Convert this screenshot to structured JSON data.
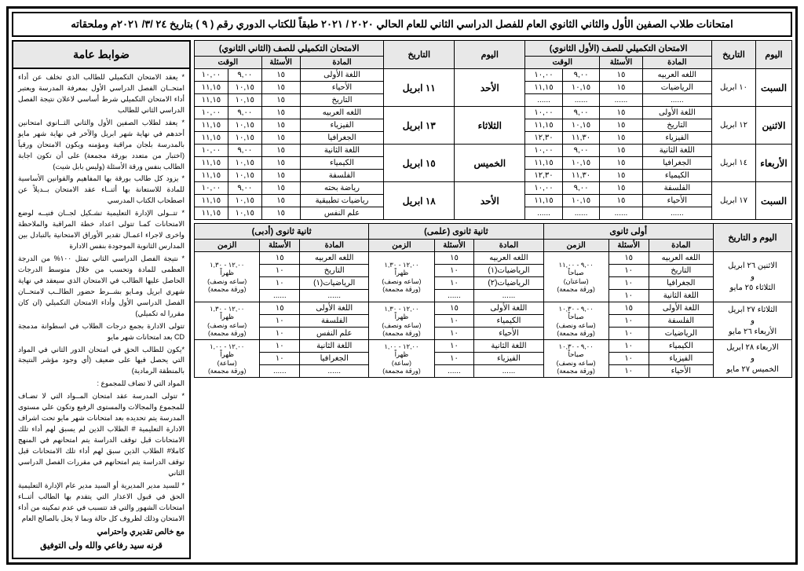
{
  "title": "امتحانات طلاب الصفين الأول والثاني الثانوي العام للفصل الدراسي الثاني للعام الحالي ٢٠٢٠ / ٢٠٢١ طبقاً للكتاب الدوري رقم ( ٩ ) بتاريخ ٢٤ /٣/ ٢٠٢١م وملحقاته",
  "rules_head": "ضوابط عامة",
  "rules": [
    "* يعقد الامتحان التكميلي للطالب الذي تخلف عن أداء امتحــان الفصل الدراسي الأول بمعرفة المدرسة ويعتبر أداء الامتحان التكميلي شرط أساسي لاعلان نتيجة الفصل الدراسي الثاني للطالب",
    "* يعقد لطلاب الصفين الأول والثاني الثــانوي امتحانين أحدهم في نهاية شهر ابريل والآخر في نهاية شهر مايو بالمدرسة بلجان مراقبة ومؤمنه ويكون الامتحان ورقياً (اختبار من متعدد بورقة مجمعة) على أن تكون اجابة الطالب بنفس ورقة الأسئلة (وليس بابل شيت)",
    "* يزود كل طالب بورقة بها المفاهيم والقوانين الأساسية للمادة للاستعانة بها أثنــاء عقد الامتحان بــديلاً عن اصطحاب الكتاب المدرسي",
    "* تتــولى الإدارة التعليمية تشـكيل لجــان فنيــه لوضع الامتحانات كمـا تتولى اعداد خطة المراقبة والملاحظة واخرى لاجراء اعمـال تقدير الأوراق الامتحانية بالتبادل بين المدارس الثانوية الموجودة بنفس الادارة",
    "* نتيجة الفصل الدراسي الثاني تمثل ١٠٠% من الدرجة العظمى للمادة وتحسب من خلال متوسط الدرجات الحاصل عليها الطالب في الامتحان الذي سيعقد في نهاية شهري ابريل ومـايو بشــرط حضور الطالــب لامتحــان الفصل الدراسي الأول وأداء الامتحان التكميلي (ان كان مقررا له تكميلي)",
    "تتولى الادارة بجمع درجات الطلاب في اسطوانة مدمجة CD بعد امتحانات شهر مايو",
    "*يكون للطالب الحق في امتحان الدور الثاني في المواد التي يحصل فيها على ضعيف (أي وجود مؤشر النتيجة بالمنطقة الرمادية)",
    "المواد التي لا تضاف للمجموع :",
    "* تتولى المدرسة عقد امتحان المــواد التي لا تضـاف للمجموع والمجالات والمستوى الرفيع وتكون علي مستوى المدرسة يتم تحديده بعد امتحانات شهر مايو تحت اشراف الادارة التعليمية # الطلاب الذين لم يسبق لهم أداء تلك الامتحانات قبل توقف الدراسة يتم امتحانهم في المنهج كاملا# الطلاب الذين سبق لهم أداء تلك الامتحانات قبل توقف الدراسة يتم امتحانهم في مقررات الفصل الدراسي الثاني",
    "* للسيد مدير المديرية أو السيد مدير عام الإدارة التعليمية الحق في قبول الاعذار التي يتقدم بها الطالب أثنــاء امتحانات الشهور والتي قد تتسبب في عدم تمكينه من أداء الامتحان وذلك لظروف كل حالة وبما لا يخل بالصالح العام"
  ],
  "sign1": "مع خالص تقديري واحترامي",
  "sign2": "قرنه سيد رفاعي    والله ولى التوفيق",
  "t1": {
    "h_day": "اليوم",
    "h_date": "التاريخ",
    "h_g1": "الامتحان التكميلي للصف (الأول الثانوي)",
    "h_g2": "الامتحان التكميلي للصف (الثاني الثانوي)",
    "h_sub": "المادة",
    "h_q": "الأسئلة",
    "h_time": "الوقت",
    "h_day2": "اليوم",
    "h_date2": "التاريخ",
    "rows": [
      {
        "day": "السبت",
        "date": "١٠ ابريل",
        "g1": [
          [
            "اللغه العربيه",
            "١٥",
            "٩,٠٠",
            "١٠,٠٠"
          ],
          [
            "الرياضيات",
            "١٥",
            "١٠,١٥",
            "١١,١٥"
          ],
          [
            "......",
            "......",
            "......",
            "......"
          ]
        ],
        "day2": "الأحد",
        "date2": "١١ ابريل",
        "g2": [
          [
            "اللغة الأولى",
            "١٥",
            "٩,٠٠",
            "١٠,٠٠"
          ],
          [
            "الأحياء",
            "١٥",
            "١٠,١٥",
            "١١,١٥"
          ],
          [
            "التاريخ",
            "١٥",
            "١٠,١٥",
            "١١,١٥"
          ]
        ]
      },
      {
        "day": "الاثنين",
        "date": "١٢ ابريل",
        "g1": [
          [
            "اللغة الأولى",
            "١٥",
            "٩,٠٠",
            "١٠,٠٠"
          ],
          [
            "التاريخ",
            "١٥",
            "١٠,١٥",
            "١١,١٥"
          ],
          [
            "الفيزياء",
            "١٥",
            "١١,٣٠",
            "١٢,٣٠"
          ]
        ],
        "day2": "الثلاثاء",
        "date2": "١٣ ابريل",
        "g2": [
          [
            "اللغه العربيه",
            "١٥",
            "٩,٠٠",
            "١٠,٠٠"
          ],
          [
            "الفيزياء",
            "١٥",
            "١٠,١٥",
            "١١,١٥"
          ],
          [
            "الجغرافيا",
            "١٥",
            "١٠,١٥",
            "١١,١٥"
          ]
        ]
      },
      {
        "day": "الأربعاء",
        "date": "١٤ ابريل",
        "g1": [
          [
            "اللغة الثانية",
            "١٥",
            "٩,٠٠",
            "١٠,٠٠"
          ],
          [
            "الجغرافيا",
            "١٥",
            "١٠,١٥",
            "١١,١٥"
          ],
          [
            "الكيمياء",
            "١٥",
            "١١,٣٠",
            "١٢,٣٠"
          ]
        ],
        "day2": "الخميس",
        "date2": "١٥ ابريل",
        "g2": [
          [
            "اللغة الثانية",
            "١٥",
            "٩,٠٠",
            "١٠,٠٠"
          ],
          [
            "الكيمياء",
            "١٥",
            "١٠,١٥",
            "١١,١٥"
          ],
          [
            "الفلسفة",
            "١٥",
            "١٠,١٥",
            "١١,١٥"
          ]
        ]
      },
      {
        "day": "السبت",
        "date": "١٧ ابريل",
        "g1": [
          [
            "الفلسفة",
            "١٥",
            "٩,٠٠",
            "١٠,٠٠"
          ],
          [
            "الأحياء",
            "١٥",
            "١٠,١٥",
            "١١,١٥"
          ],
          [
            "......",
            "......",
            "......",
            "......"
          ]
        ],
        "day2": "الأحد",
        "date2": "١٨ ابريل",
        "g2": [
          [
            "رياضة بحته",
            "١٥",
            "٩,٠٠",
            "١٠,٠٠"
          ],
          [
            "رياضيات تطبيقية",
            "١٥",
            "١٠,١٥",
            "١١,١٥"
          ],
          [
            "علم النفس",
            "١٥",
            "١٠,١٥",
            "١١,١٥"
          ]
        ]
      }
    ]
  },
  "t2": {
    "h_daydate": "اليوم   و  التاريخ",
    "h_g1": "أولى ثانوى",
    "h_g2": "ثانية ثانوى (علمى)",
    "h_g3": "ثانية ثانوى (أدبى)",
    "h_sub": "المادة",
    "h_q": "الأسئلة",
    "h_time": "الزمن",
    "rows": [
      {
        "dd": "الاثنين ٢٦ ابريل\nو\nالثلاثاء ٢٥ مايو",
        "time1": "٩,٠٠ - ١١,٠٠\nصباحاً\n(ساعتان)\n(ورقة مجمعة)",
        "g1": [
          [
            "اللغه العربيه",
            "١٥"
          ],
          [
            "التاريخ",
            "١٠"
          ],
          [
            "الجغرافيا",
            "١٠"
          ],
          [
            "اللغة الثانية",
            "١٠"
          ]
        ],
        "time2": "١٢,٠٠ - ١,٣٠\nظهراً\n(ساعه ونصف)\n(ورقة مجمعة)",
        "g2": [
          [
            "اللغه العربيه",
            "١٥"
          ],
          [
            "الرياضيات(١)",
            "١٠"
          ],
          [
            "الرياضيات(٢)",
            "١٠"
          ],
          [
            "......",
            "......"
          ]
        ],
        "time3": "١٢,٠٠ - ١,٣٠\nظهراً\n(ساعه ونصف)\n(ورقة مجمعة)",
        "g3": [
          [
            "اللغه العربيه",
            "١٥"
          ],
          [
            "التاريخ",
            "١٠"
          ],
          [
            "الرياضيات(١)",
            "١٠"
          ],
          [
            "......",
            "......"
          ]
        ]
      },
      {
        "dd": "الثلاثاء  ٢٧ ابريل\nو\nالأربعاء ٢٦ مايو",
        "time1": "٩,٠٠ - ١٠,٣٠\nصباحاً\n(ساعه ونصف)\n(ورقة مجمعة)",
        "g1": [
          [
            "اللغة الأولى",
            "١٥"
          ],
          [
            "الفلسفة",
            "١٠"
          ],
          [
            "الرياضيات",
            "١٠"
          ]
        ],
        "time2": "١٢,٠٠ - ١,٣٠\nظهراً\n(ساعه ونصف)\n(ورقة مجمعة)",
        "g2": [
          [
            "اللغة الأولى",
            "١٥"
          ],
          [
            "الكيمياء",
            "١٠"
          ],
          [
            "الأحياء",
            "١٠"
          ]
        ],
        "time3": "١٢,٠٠ - ١,٣٠\nظهراً\n(ساعه ونصف)\n(ورقة مجمعة)",
        "g3": [
          [
            "اللغة الأولى",
            "١٥"
          ],
          [
            "الفلسفة",
            "١٠"
          ],
          [
            "علم النفس",
            "١٠"
          ]
        ]
      },
      {
        "dd": "الاربعاء ٢٨ ابريل\nو\nالخميس ٢٧ مايو",
        "time1": "٩,٠٠ - ١٠,٣٠\nصباحاً\n(ساعه ونصف)\n(ورقة مجمعة)",
        "g1": [
          [
            "الكيمياء",
            "١٠"
          ],
          [
            "الفيزياء",
            "١٠"
          ],
          [
            "الأحياء",
            "١٠"
          ]
        ],
        "time2": "١٢,٠٠ - ١,٠٠\nظهراً\n(ساعة)\n(ورقة مجمعة)",
        "g2": [
          [
            "اللغة الثانية",
            "١٠"
          ],
          [
            "الفيزياء",
            "١٠"
          ],
          [
            "......",
            "......"
          ]
        ],
        "time3": "١٢,٠٠ - ١,٠٠\nظهراً\n(ساعة)\n(ورقة مجمعة)",
        "g3": [
          [
            "اللغة الثانية",
            "١٠"
          ],
          [
            "الجغرافيا",
            "١٠"
          ],
          [
            "......",
            "......"
          ]
        ]
      }
    ]
  }
}
